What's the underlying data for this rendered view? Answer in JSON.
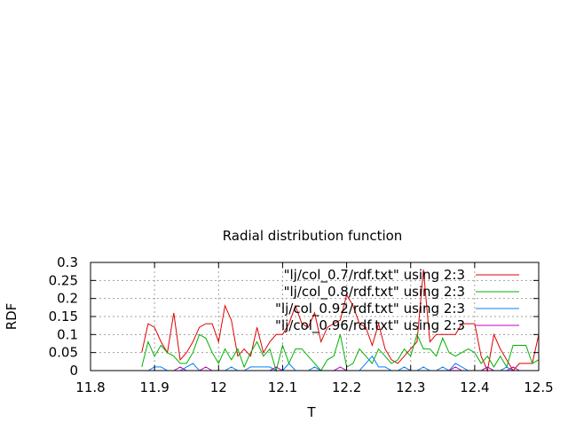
{
  "chart_data": {
    "type": "line",
    "title": "Radial distribution function",
    "xlabel": "T",
    "ylabel": "RDF",
    "xlim": [
      11.8,
      12.5
    ],
    "ylim": [
      0,
      0.3
    ],
    "x_ticks": [
      "11.8",
      "11.9",
      "12",
      "12.1",
      "12.2",
      "12.3",
      "12.4",
      "12.5"
    ],
    "y_ticks": [
      "0",
      "0.05",
      "0.1",
      "0.15",
      "0.2",
      "0.25",
      "0.3"
    ],
    "grid": true,
    "legend_position": "top-right",
    "x": [
      11.88,
      11.89,
      11.9,
      11.91,
      11.92,
      11.93,
      11.94,
      11.95,
      11.96,
      11.97,
      11.98,
      11.99,
      12.0,
      12.01,
      12.02,
      12.03,
      12.04,
      12.05,
      12.06,
      12.07,
      12.08,
      12.09,
      12.1,
      12.11,
      12.12,
      12.13,
      12.14,
      12.15,
      12.16,
      12.17,
      12.18,
      12.19,
      12.2,
      12.21,
      12.22,
      12.23,
      12.24,
      12.25,
      12.26,
      12.27,
      12.28,
      12.29,
      12.3,
      12.31,
      12.32,
      12.33,
      12.34,
      12.35,
      12.36,
      12.37,
      12.38,
      12.39,
      12.4,
      12.41,
      12.42,
      12.43,
      12.44,
      12.45,
      12.46,
      12.47,
      12.48,
      12.49,
      12.5
    ],
    "series": [
      {
        "name": "\"lj/col_0.7/rdf.txt\" using 2:3",
        "color": "#e00000",
        "values": [
          0.05,
          0.13,
          0.12,
          0.08,
          0.05,
          0.16,
          0.03,
          0.05,
          0.08,
          0.12,
          0.13,
          0.13,
          0.08,
          0.18,
          0.14,
          0.04,
          0.06,
          0.04,
          0.12,
          0.05,
          0.08,
          0.1,
          0.1,
          0.13,
          0.18,
          0.13,
          0.12,
          0.16,
          0.08,
          0.12,
          0.13,
          0.14,
          0.21,
          0.18,
          0.13,
          0.12,
          0.07,
          0.13,
          0.06,
          0.03,
          0.02,
          0.04,
          0.06,
          0.08,
          0.28,
          0.08,
          0.1,
          0.1,
          0.1,
          0.1,
          0.13,
          0.13,
          0.13,
          0.04,
          0.0,
          0.1,
          0.06,
          0.03,
          0.0,
          0.02,
          0.02,
          0.02,
          0.1
        ]
      },
      {
        "name": "\"lj/col_0.8/rdf.txt\" using 2:3",
        "color": "#00b000",
        "values": [
          0.01,
          0.08,
          0.04,
          0.07,
          0.05,
          0.04,
          0.02,
          0.02,
          0.05,
          0.1,
          0.09,
          0.05,
          0.02,
          0.06,
          0.03,
          0.06,
          0.01,
          0.05,
          0.08,
          0.04,
          0.06,
          0.0,
          0.07,
          0.02,
          0.06,
          0.06,
          0.04,
          0.02,
          0.0,
          0.03,
          0.04,
          0.1,
          0.01,
          0.02,
          0.06,
          0.04,
          0.02,
          0.06,
          0.04,
          0.02,
          0.03,
          0.06,
          0.04,
          0.1,
          0.06,
          0.06,
          0.04,
          0.09,
          0.05,
          0.04,
          0.05,
          0.06,
          0.05,
          0.02,
          0.04,
          0.01,
          0.04,
          0.01,
          0.07,
          0.07,
          0.07,
          0.02,
          0.03
        ]
      },
      {
        "name": "\"lj/col_0.92/rdf.txt\" using 2:3",
        "color": "#0080ff",
        "values": [
          0.0,
          0.0,
          0.01,
          0.01,
          0.0,
          0.0,
          0.0,
          0.01,
          0.02,
          0.0,
          0.0,
          0.0,
          0.0,
          0.0,
          0.01,
          0.0,
          0.0,
          0.01,
          0.01,
          0.01,
          0.01,
          0.0,
          0.0,
          0.02,
          0.0,
          0.0,
          0.0,
          0.01,
          0.0,
          0.0,
          0.0,
          0.0,
          0.0,
          0.0,
          0.0,
          0.02,
          0.04,
          0.01,
          0.01,
          0.0,
          0.0,
          0.01,
          0.0,
          0.0,
          0.01,
          0.0,
          0.0,
          0.01,
          0.0,
          0.02,
          0.01,
          0.0,
          0.0,
          0.0,
          0.01,
          0.0,
          0.0,
          0.01,
          0.0,
          0.0,
          0.0,
          0.0,
          0.0
        ]
      },
      {
        "name": "\"lj/col_0.96/rdf.txt\" using 2:3",
        "color": "#c000c0",
        "values": [
          0.0,
          0.0,
          0.0,
          0.0,
          0.0,
          0.0,
          0.01,
          0.0,
          0.0,
          0.0,
          0.01,
          0.0,
          0.0,
          0.0,
          0.0,
          0.0,
          0.0,
          0.0,
          0.0,
          0.0,
          0.0,
          0.01,
          0.0,
          0.0,
          0.0,
          0.0,
          0.0,
          0.0,
          0.0,
          0.0,
          0.0,
          0.01,
          0.0,
          0.0,
          0.0,
          0.0,
          0.0,
          0.0,
          0.0,
          0.0,
          0.0,
          0.0,
          0.0,
          0.0,
          0.0,
          0.0,
          0.0,
          0.0,
          0.0,
          0.01,
          0.0,
          0.0,
          0.0,
          0.0,
          0.01,
          0.0,
          0.0,
          0.0,
          0.01,
          0.0,
          0.0,
          0.0,
          0.0
        ]
      }
    ]
  }
}
